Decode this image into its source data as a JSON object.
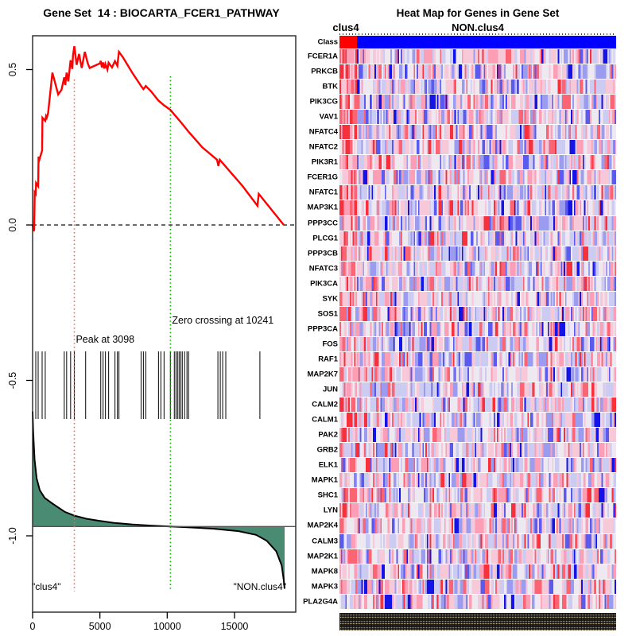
{
  "left_panel": {
    "title": "Gene Set  14 : BIOCARTA_FCER1_PATHWAY"
  },
  "right_panel": {
    "title": "Heat Map for Genes in Gene Set",
    "group_label_left": "clus4",
    "group_label_right": "NON.clus4"
  },
  "chart_data": [
    {
      "type": "line",
      "title": "Gene Set  14 : BIOCARTA_FCER1_PATHWAY",
      "xlabel": "",
      "ylabel": "",
      "xlim": [
        0,
        19490
      ],
      "ylim": [
        -1.25,
        0.61
      ],
      "x_ticks": [
        {
          "value": 0,
          "label": "0"
        },
        {
          "value": 5000,
          "label": "5000"
        },
        {
          "value": 10000,
          "label": "10000"
        },
        {
          "value": 15000,
          "label": "15000"
        }
      ],
      "y_ticks": [
        {
          "value": 0.5,
          "label": "0.5"
        },
        {
          "value": 0.0,
          "label": "0.0"
        },
        {
          "value": -0.5,
          "label": "-0.5"
        },
        {
          "value": -1.0,
          "label": "-1.0"
        }
      ],
      "zero_dashed_line_y": 0.0,
      "peak": {
        "rank": 3098,
        "label": "Peak at 3098",
        "line_color": "#F4695E"
      },
      "zero_crossing": {
        "rank": 10241,
        "label": "Zero crossing at 10241",
        "line_color": "#00BB00"
      },
      "footer_left": "\"clus4\"",
      "footer_right": "\"NON.clus4\"",
      "es_color": "#FF0000",
      "metric_fill": "#4A8B74",
      "metric_stroke": "#000000",
      "baseline_value": -0.97,
      "baseline_color": "#555555",
      "hit_tick_color": "#1a1a1a",
      "series": [
        {
          "name": "running_enrichment_score",
          "points": [
            [
              0,
              0
            ],
            [
              80,
              -0.02
            ],
            [
              120,
              -0.015
            ],
            [
              160,
              0.105
            ],
            [
              235,
              0.1
            ],
            [
              260,
              0.135
            ],
            [
              412,
              0.125
            ],
            [
              440,
              0.22
            ],
            [
              500,
              0.21
            ],
            [
              706,
              0.24
            ],
            [
              730,
              0.345
            ],
            [
              941,
              0.335
            ],
            [
              1000,
              0.35
            ],
            [
              1050,
              0.345
            ],
            [
              1150,
              0.36
            ],
            [
              1470,
              0.49
            ],
            [
              1900,
              0.42
            ],
            [
              2150,
              0.435
            ],
            [
              2353,
              0.475
            ],
            [
              2430,
              0.45
            ],
            [
              2529,
              0.49
            ],
            [
              2650,
              0.462
            ],
            [
              2824,
              0.53
            ],
            [
              2950,
              0.502
            ],
            [
              3000,
              0.545
            ],
            [
              3098,
              0.575
            ],
            [
              3270,
              0.515
            ],
            [
              3450,
              0.55
            ],
            [
              3650,
              0.505
            ],
            [
              3880,
              0.557
            ],
            [
              4100,
              0.52
            ],
            [
              4240,
              0.505
            ],
            [
              5000,
              0.52
            ],
            [
              5059,
              0.528
            ],
            [
              5150,
              0.507
            ],
            [
              5235,
              0.523
            ],
            [
              5330,
              0.503
            ],
            [
              5412,
              0.518
            ],
            [
              5560,
              0.5
            ],
            [
              5647,
              0.522
            ],
            [
              5900,
              0.507
            ],
            [
              6118,
              0.527
            ],
            [
              6294,
              0.512
            ],
            [
              6412,
              0.557
            ],
            [
              6700,
              0.54
            ],
            [
              7400,
              0.49
            ],
            [
              8059,
              0.447
            ],
            [
              8235,
              0.437
            ],
            [
              8412,
              0.447
            ],
            [
              8800,
              0.43
            ],
            [
              9353,
              0.4
            ],
            [
              9765,
              0.385
            ],
            [
              10241,
              0.37
            ],
            [
              11118,
              0.325
            ],
            [
              11588,
              0.3
            ],
            [
              12600,
              0.25
            ],
            [
              13700,
              0.21
            ],
            [
              13800,
              0.19
            ],
            [
              13900,
              0.21
            ],
            [
              14200,
              0.195
            ],
            [
              15600,
              0.125
            ],
            [
              16700,
              0.062
            ],
            [
              16800,
              0.1
            ],
            [
              18660,
              0.0
            ]
          ]
        },
        {
          "name": "ranked_list_metric",
          "points": [
            [
              0,
              -0.6
            ],
            [
              40,
              -0.66
            ],
            [
              80,
              -0.7
            ],
            [
              150,
              -0.755
            ],
            [
              300,
              -0.815
            ],
            [
              530,
              -0.853
            ],
            [
              900,
              -0.878
            ],
            [
              1500,
              -0.897
            ],
            [
              2400,
              -0.923
            ],
            [
              3098,
              -0.935
            ],
            [
              4000,
              -0.945
            ],
            [
              5000,
              -0.952
            ],
            [
              6000,
              -0.958
            ],
            [
              7440,
              -0.9635
            ],
            [
              8800,
              -0.967
            ],
            [
              10241,
              -0.97
            ],
            [
              11500,
              -0.9725
            ],
            [
              13400,
              -0.977
            ],
            [
              15300,
              -0.985
            ],
            [
              16600,
              -0.997
            ],
            [
              17400,
              -1.016
            ],
            [
              18100,
              -1.05
            ],
            [
              18500,
              -1.095
            ],
            [
              18650,
              -1.14
            ],
            [
              18720,
              -1.17
            ]
          ]
        }
      ],
      "hit_ranks": [
        235,
        412,
        706,
        941,
        2353,
        2529,
        2824,
        3098,
        3941,
        5059,
        5235,
        5412,
        5647,
        6118,
        6294,
        6412,
        8059,
        8235,
        8412,
        9353,
        9529,
        9765,
        10235,
        10529,
        10647,
        10765,
        10882,
        11000,
        11118,
        11294,
        11471,
        11588,
        13765,
        13941,
        14118,
        14353,
        16882
      ]
    },
    {
      "type": "heatmap",
      "title": "Heat Map for Genes in Gene Set",
      "group_labels": [
        "clus4",
        "NON.clus4"
      ],
      "class_row": {
        "label": "Class",
        "clus4_count": 12,
        "total_samples": 190,
        "clus4_color": "#FF0000",
        "non_color": "#0000FF"
      },
      "genes": [
        "FCER1A",
        "PRKCB",
        "BTK",
        "PIK3CG",
        "VAV1",
        "NFATC4",
        "NFATC2",
        "PIK3R1",
        "FCER1G",
        "NFATC1",
        "MAP3K1",
        "PPP3CC",
        "PLCG1",
        "PPP3CB",
        "NFATC3",
        "PIK3CA",
        "SYK",
        "SOS1",
        "PPP3CA",
        "FOS",
        "RAF1",
        "MAP2K7",
        "JUN",
        "CALM2",
        "CALM1",
        "PAK2",
        "GRB2",
        "ELK1",
        "MAPK1",
        "SHC1",
        "LYN",
        "MAP2K4",
        "CALM3",
        "MAP2K1",
        "MAPK8",
        "MAPK3",
        "PLA2G4A"
      ],
      "palette": [
        "#1414E6",
        "#5A5AEF",
        "#9B9BEF",
        "#CCCCF2",
        "#EEE8F0",
        "#F7C8D8",
        "#FB9EB6",
        "#FB6473",
        "#F7303C"
      ],
      "seed": 42,
      "clus4_bias_top": 0.65,
      "clus4_bias_slope": 0.014
    }
  ]
}
